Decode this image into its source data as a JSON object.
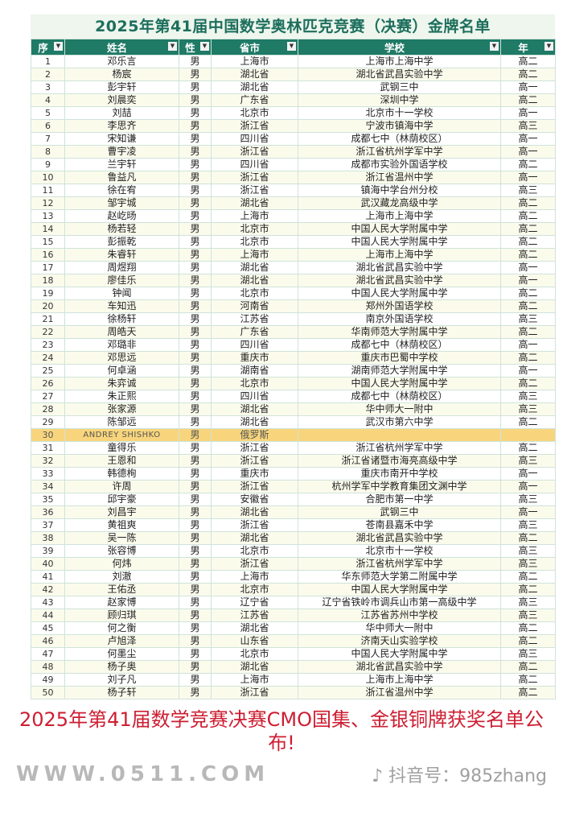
{
  "title": "2025年第41届中国数学奥林匹克竞赛（决赛）金牌名单",
  "columns": [
    "序号",
    "姓名",
    "性别",
    "省市",
    "学校",
    "年级"
  ],
  "header_labels": [
    "序",
    "姓名",
    "性",
    "省市",
    "学校",
    "年"
  ],
  "colors": {
    "header_bg": "#1f7a66",
    "title": "#1d6e5c",
    "highlight_row": "#f8d57c",
    "watermark": "#cd1e32"
  },
  "rows": [
    [
      "1",
      "邓乐言",
      "男",
      "上海市",
      "上海市上海中学",
      "高二"
    ],
    [
      "2",
      "杨宸",
      "男",
      "湖北省",
      "湖北省武昌实验中学",
      "高二"
    ],
    [
      "3",
      "彭宇轩",
      "男",
      "湖北省",
      "武钢三中",
      "高一"
    ],
    [
      "4",
      "刘晨奕",
      "男",
      "广东省",
      "深圳中学",
      "高二"
    ],
    [
      "5",
      "刘喆",
      "男",
      "北京市",
      "北京市十一学校",
      "高一"
    ],
    [
      "6",
      "李思齐",
      "男",
      "浙江省",
      "宁波市镇海中学",
      "高三"
    ],
    [
      "7",
      "宋知谦",
      "男",
      "四川省",
      "成都七中（林荫校区）",
      "高一"
    ],
    [
      "8",
      "曹宇凌",
      "男",
      "浙江省",
      "浙江省杭州学军中学",
      "高一"
    ],
    [
      "9",
      "兰宇轩",
      "男",
      "四川省",
      "成都市实验外国语学校",
      "高二"
    ],
    [
      "10",
      "鲁益凡",
      "男",
      "浙江省",
      "浙江省温州中学",
      "高一"
    ],
    [
      "11",
      "徐在宥",
      "男",
      "浙江省",
      "镇海中学台州分校",
      "高三"
    ],
    [
      "12",
      "邹宇城",
      "男",
      "湖北省",
      "武汉藏龙高级中学",
      "高二"
    ],
    [
      "13",
      "赵屹旸",
      "男",
      "上海市",
      "上海市上海中学",
      "高二"
    ],
    [
      "14",
      "杨若轻",
      "男",
      "北京市",
      "中国人民大学附属中学",
      "高二"
    ],
    [
      "15",
      "彭振乾",
      "男",
      "北京市",
      "中国人民大学附属中学",
      "高二"
    ],
    [
      "16",
      "朱睿轩",
      "男",
      "上海市",
      "上海市上海中学",
      "高二"
    ],
    [
      "17",
      "周煜翔",
      "男",
      "湖北省",
      "湖北省武昌实验中学",
      "高一"
    ],
    [
      "18",
      "廖佳乐",
      "男",
      "湖北省",
      "湖北省武昌实验中学",
      "高一"
    ],
    [
      "19",
      "钟闻",
      "男",
      "北京市",
      "中国人民大学附属中学",
      "高二"
    ],
    [
      "20",
      "车知迅",
      "男",
      "河南省",
      "郑州外国语学校",
      "高二"
    ],
    [
      "21",
      "徐杨轩",
      "男",
      "江苏省",
      "南京外国语学校",
      "高三"
    ],
    [
      "22",
      "周皓天",
      "男",
      "广东省",
      "华南师范大学附属中学",
      "高二"
    ],
    [
      "23",
      "邓璐非",
      "男",
      "四川省",
      "成都七中（林荫校区）",
      "高一"
    ],
    [
      "24",
      "邓思远",
      "男",
      "重庆市",
      "重庆市巴蜀中学校",
      "高二"
    ],
    [
      "25",
      "何卓涵",
      "男",
      "湖南省",
      "湖南师范大学附属中学",
      "高一"
    ],
    [
      "26",
      "朱弈诚",
      "男",
      "北京市",
      "中国人民大学附属中学",
      "高二"
    ],
    [
      "27",
      "朱正熙",
      "男",
      "四川省",
      "成都七中（林荫校区）",
      "高三"
    ],
    [
      "28",
      "张家源",
      "男",
      "湖北省",
      "华中师大一附中",
      "高三"
    ],
    [
      "29",
      "陈邹远",
      "男",
      "湖北省",
      "武汉市第六中学",
      "高二"
    ],
    [
      "30",
      "ANDREY SHISHKO",
      "男",
      "俄罗斯",
      "",
      ""
    ],
    [
      "31",
      "童得乐",
      "男",
      "浙江省",
      "浙江省杭州学军中学",
      "高二"
    ],
    [
      "32",
      "王恩和",
      "男",
      "浙江省",
      "浙江省诸暨市海亮高级中学",
      "高三"
    ],
    [
      "33",
      "韩德栒",
      "男",
      "重庆市",
      "重庆市南开中学校",
      "高一"
    ],
    [
      "34",
      "许周",
      "男",
      "浙江省",
      "杭州学军中学教育集团文渊中学",
      "高一"
    ],
    [
      "35",
      "邱宇豪",
      "男",
      "安徽省",
      "合肥市第一中学",
      "高三"
    ],
    [
      "36",
      "刘昌宇",
      "男",
      "湖北省",
      "武钢三中",
      "高一"
    ],
    [
      "37",
      "黄祖爽",
      "男",
      "浙江省",
      "苍南县嘉禾中学",
      "高三"
    ],
    [
      "38",
      "吴一陈",
      "男",
      "湖北省",
      "湖北省武昌实验中学",
      "高二"
    ],
    [
      "39",
      "张容博",
      "男",
      "北京市",
      "北京市十一学校",
      "高三"
    ],
    [
      "40",
      "何炜",
      "男",
      "浙江省",
      "浙江省杭州学军中学",
      "高三"
    ],
    [
      "41",
      "刘澈",
      "男",
      "上海市",
      "华东师范大学第二附属中学",
      "高二"
    ],
    [
      "42",
      "王佑丞",
      "男",
      "北京市",
      "中国人民大学附属中学",
      "高二"
    ],
    [
      "43",
      "赵家博",
      "男",
      "辽宁省",
      "辽宁省铁岭市调兵山市第一高级中学",
      "高三"
    ],
    [
      "44",
      "顾归琪",
      "男",
      "江苏省",
      "江苏省苏州中学校",
      "高三"
    ],
    [
      "45",
      "何之衡",
      "男",
      "湖北省",
      "华中师大一附中",
      "高二"
    ],
    [
      "46",
      "卢旭泽",
      "男",
      "山东省",
      "济南天山实验学校",
      "高二"
    ],
    [
      "47",
      "何墨尘",
      "男",
      "北京市",
      "中国人民大学附属中学",
      "高三"
    ],
    [
      "48",
      "杨子奥",
      "男",
      "湖北省",
      "湖北省武昌实验中学",
      "高二"
    ],
    [
      "49",
      "刘子凡",
      "男",
      "上海市",
      "上海市上海中学",
      "高二"
    ],
    [
      "50",
      "杨子轩",
      "男",
      "浙江省",
      "浙江省温州中学",
      "高二"
    ]
  ],
  "highlighted_row": 30,
  "watermarks": {
    "overlay": "2025年第41届数学竞赛决赛CMO国集、金银铜牌获奖名单公布!",
    "site": "WWW.0511.COM",
    "douyin": "抖音号：985zhang"
  }
}
